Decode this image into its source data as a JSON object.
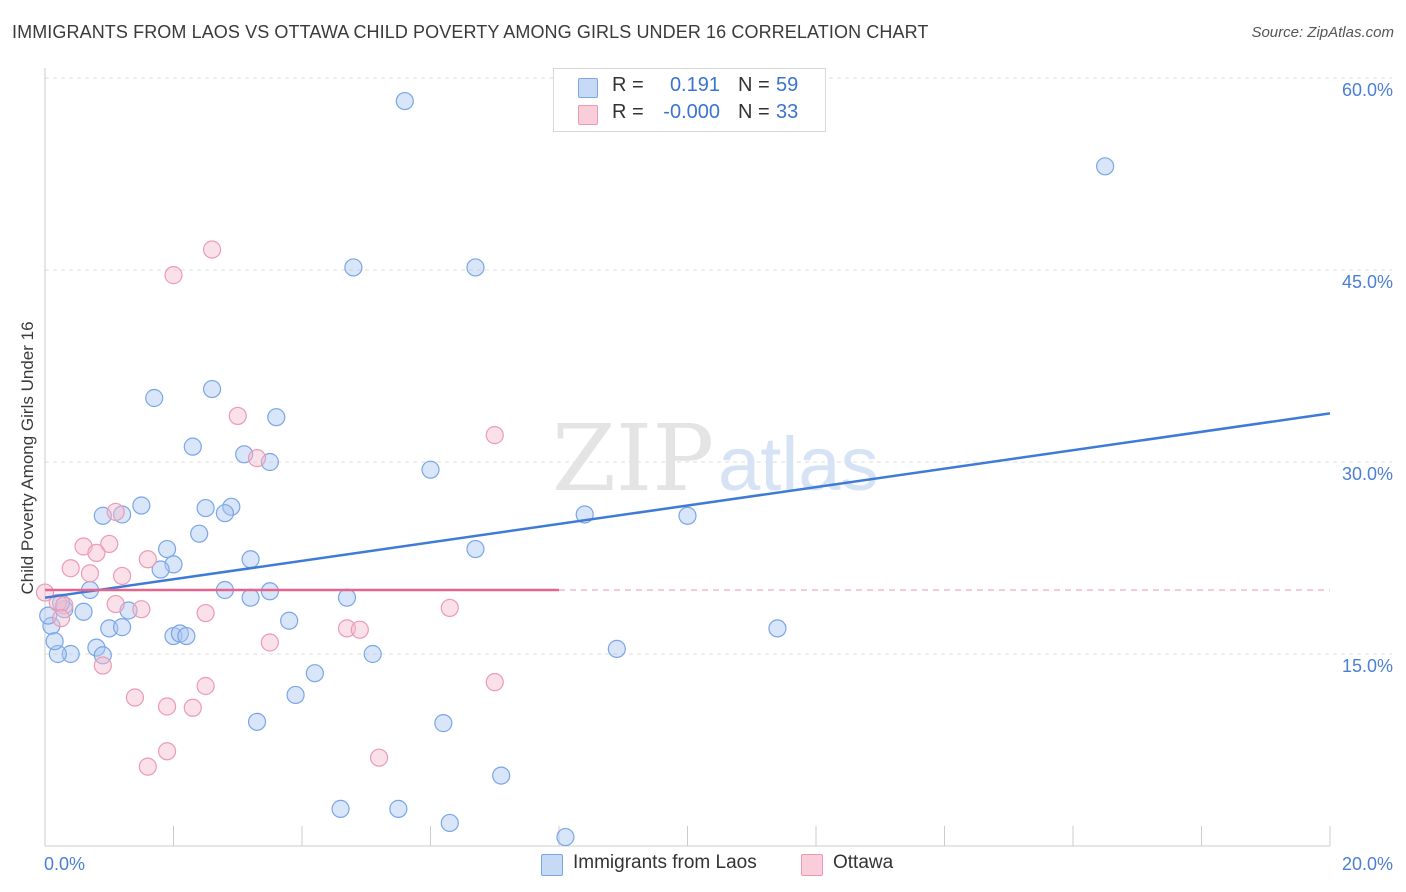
{
  "title": "IMMIGRANTS FROM LAOS VS OTTAWA CHILD POVERTY AMONG GIRLS UNDER 16 CORRELATION CHART",
  "source": "Source: ZipAtlas.com",
  "watermark": {
    "zip": "ZIP",
    "atlas": "atlas"
  },
  "legend": {
    "r_label": "R =",
    "n_label": "N =",
    "rows": [
      {
        "name": "Immigrants from Laos",
        "r": "0.191",
        "n": "59",
        "swatch_fill": "#c6d9f5",
        "swatch_stroke": "#7aa6e6"
      },
      {
        "name": "Ottawa",
        "r": "-0.000",
        "n": "33",
        "swatch_fill": "#f9cdd9",
        "swatch_stroke": "#ec9ab4"
      }
    ]
  },
  "chart_data": {
    "type": "scatter",
    "title": "IMMIGRANTS FROM LAOS VS OTTAWA CHILD POVERTY AMONG GIRLS UNDER 16 CORRELATION CHART",
    "xlabel": "",
    "ylabel": "Child Poverty Among Girls Under 16",
    "xlim": [
      0,
      20
    ],
    "ylim": [
      0,
      60
    ],
    "x_tick_labels": [
      "0.0%",
      "20.0%"
    ],
    "y_ticks": [
      15,
      30,
      45,
      60
    ],
    "y_tick_labels": [
      "15.0%",
      "30.0%",
      "45.0%",
      "60.0%"
    ],
    "grid": true,
    "series": [
      {
        "name": "Immigrants from Laos",
        "color": "#7aa6e6",
        "fill": "rgba(170,198,240,0.45)",
        "trend_color": "#3f7bd6",
        "trend": {
          "x": [
            0,
            20
          ],
          "y": [
            19.4,
            33.8
          ],
          "dashed_from": null
        },
        "points": [
          [
            5.6,
            58.2
          ],
          [
            16.5,
            53.1
          ],
          [
            4.8,
            45.2
          ],
          [
            6.7,
            45.2
          ],
          [
            1.7,
            35.0
          ],
          [
            2.6,
            35.7
          ],
          [
            3.6,
            33.5
          ],
          [
            2.3,
            31.2
          ],
          [
            3.1,
            30.6
          ],
          [
            3.5,
            30.0
          ],
          [
            6.0,
            29.4
          ],
          [
            1.5,
            26.6
          ],
          [
            2.5,
            26.4
          ],
          [
            2.9,
            26.5
          ],
          [
            2.8,
            26.0
          ],
          [
            1.2,
            25.9
          ],
          [
            0.9,
            25.8
          ],
          [
            8.4,
            25.9
          ],
          [
            10.0,
            25.8
          ],
          [
            2.4,
            24.4
          ],
          [
            1.9,
            23.2
          ],
          [
            6.7,
            23.2
          ],
          [
            3.2,
            22.4
          ],
          [
            2.0,
            22.0
          ],
          [
            1.8,
            21.6
          ],
          [
            0.7,
            20.0
          ],
          [
            2.8,
            20.0
          ],
          [
            3.5,
            19.9
          ],
          [
            3.2,
            19.4
          ],
          [
            4.7,
            19.4
          ],
          [
            0.3,
            18.5
          ],
          [
            0.6,
            18.3
          ],
          [
            1.3,
            18.4
          ],
          [
            3.8,
            17.6
          ],
          [
            1.0,
            17.0
          ],
          [
            1.2,
            17.1
          ],
          [
            11.4,
            17.0
          ],
          [
            2.0,
            16.4
          ],
          [
            2.1,
            16.6
          ],
          [
            2.2,
            16.4
          ],
          [
            0.8,
            15.5
          ],
          [
            8.9,
            15.4
          ],
          [
            0.4,
            15.0
          ],
          [
            0.2,
            15.0
          ],
          [
            0.9,
            14.9
          ],
          [
            5.1,
            15.0
          ],
          [
            4.2,
            13.5
          ],
          [
            3.9,
            11.8
          ],
          [
            3.3,
            9.7
          ],
          [
            6.2,
            9.6
          ],
          [
            7.1,
            5.5
          ],
          [
            4.6,
            2.9
          ],
          [
            5.5,
            2.9
          ],
          [
            6.3,
            1.8
          ],
          [
            8.1,
            0.7
          ],
          [
            0.1,
            17.2
          ],
          [
            0.05,
            18.0
          ],
          [
            0.25,
            19.0
          ],
          [
            0.15,
            16.0
          ]
        ]
      },
      {
        "name": "Ottawa",
        "color": "#ec9ab4",
        "fill": "rgba(245,188,206,0.45)",
        "trend_color": "#e4668e",
        "trend": {
          "x": [
            0,
            20
          ],
          "y": [
            20.0,
            20.0
          ],
          "dashed_from": 8.0
        },
        "points": [
          [
            2.6,
            46.6
          ],
          [
            2.0,
            44.6
          ],
          [
            3.0,
            33.6
          ],
          [
            7.0,
            32.1
          ],
          [
            3.3,
            30.3
          ],
          [
            1.1,
            26.1
          ],
          [
            1.0,
            23.6
          ],
          [
            0.6,
            23.4
          ],
          [
            0.8,
            22.9
          ],
          [
            1.6,
            22.4
          ],
          [
            0.4,
            21.7
          ],
          [
            0.7,
            21.3
          ],
          [
            1.2,
            21.1
          ],
          [
            0.0,
            19.8
          ],
          [
            0.2,
            19.0
          ],
          [
            0.3,
            18.8
          ],
          [
            1.1,
            18.9
          ],
          [
            1.5,
            18.5
          ],
          [
            6.3,
            18.6
          ],
          [
            0.25,
            17.8
          ],
          [
            2.5,
            18.2
          ],
          [
            4.7,
            17.0
          ],
          [
            4.9,
            16.9
          ],
          [
            3.5,
            15.9
          ],
          [
            0.9,
            14.1
          ],
          [
            2.5,
            12.5
          ],
          [
            7.0,
            12.8
          ],
          [
            1.4,
            11.6
          ],
          [
            1.9,
            10.9
          ],
          [
            2.3,
            10.8
          ],
          [
            5.2,
            6.9
          ],
          [
            1.9,
            7.4
          ],
          [
            1.6,
            6.2
          ]
        ]
      }
    ]
  }
}
